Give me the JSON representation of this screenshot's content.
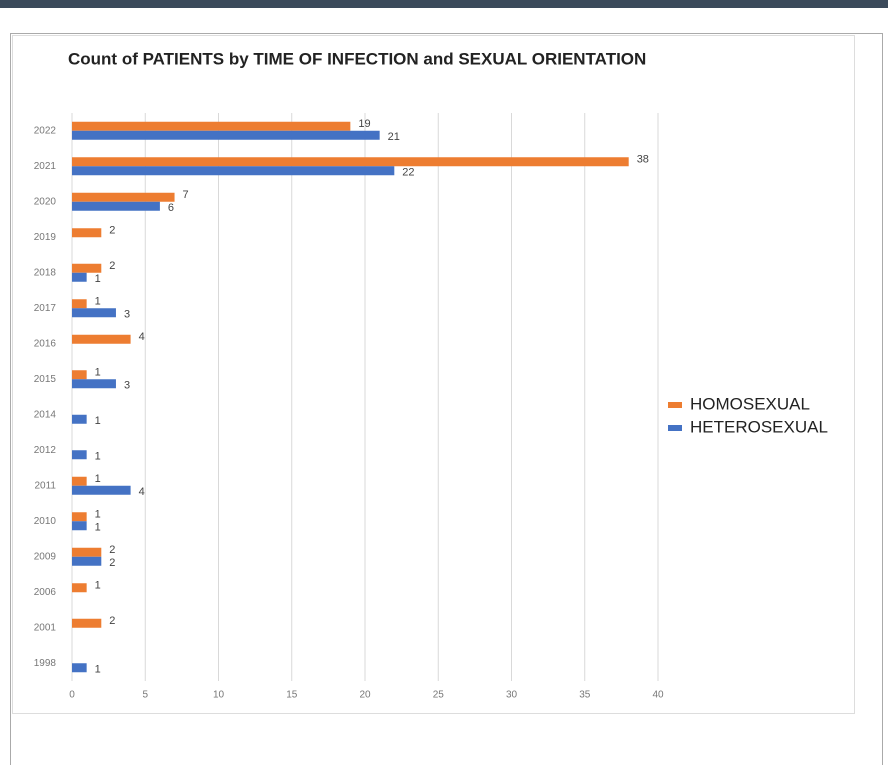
{
  "chart_data": {
    "type": "bar",
    "orientation": "horizontal",
    "title": "Count of PATIENTS by TIME OF INFECTION and SEXUAL ORIENTATION",
    "categories": [
      "2022",
      "2021",
      "2020",
      "2019",
      "2018",
      "2017",
      "2016",
      "2015",
      "2014",
      "2012",
      "2011",
      "2010",
      "2009",
      "2006",
      "2001",
      "1998"
    ],
    "series": [
      {
        "name": "HOMOSEXUAL",
        "color": "#ed7d31",
        "values": [
          19,
          38,
          7,
          2,
          2,
          1,
          4,
          1,
          null,
          null,
          1,
          1,
          2,
          1,
          2,
          null
        ]
      },
      {
        "name": "HETEROSEXUAL",
        "color": "#4472c4",
        "values": [
          21,
          22,
          6,
          null,
          1,
          3,
          null,
          3,
          1,
          1,
          4,
          1,
          2,
          null,
          null,
          1
        ]
      }
    ],
    "xlim": [
      0,
      40
    ],
    "xticks": [
      0,
      5,
      10,
      15,
      20,
      25,
      30,
      35,
      40
    ],
    "grid": true,
    "legend": "right"
  }
}
